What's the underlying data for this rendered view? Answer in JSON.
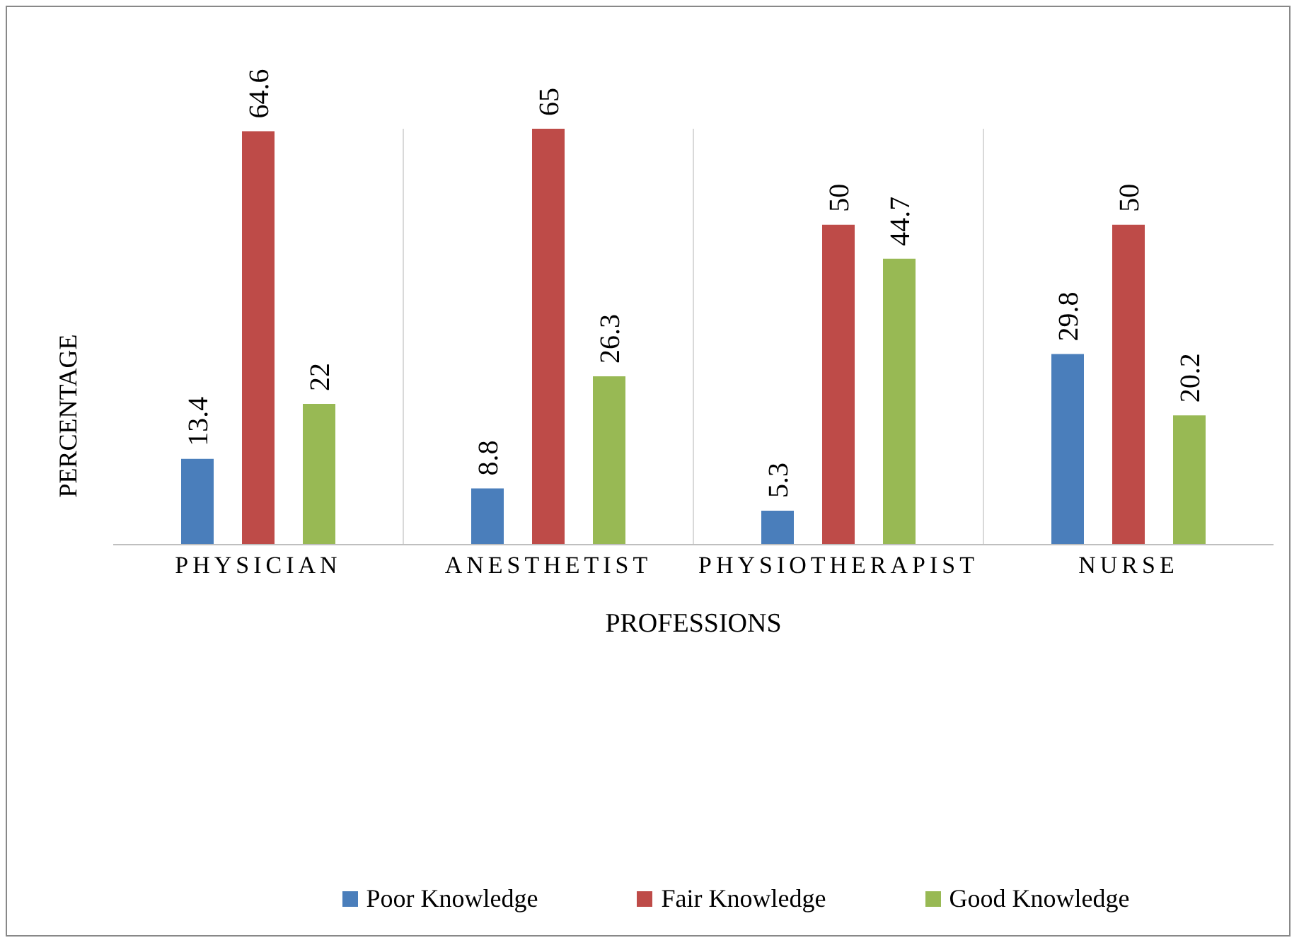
{
  "chart_data": {
    "type": "bar",
    "xlabel": "PROFESSIONS",
    "ylabel": "PERCENTAGE",
    "categories": [
      "PHYSICIAN",
      "ANESTHETIST",
      "PHYSIOTHERAPIST",
      "NURSE"
    ],
    "series": [
      {
        "name": "Poor Knowledge",
        "color": "#4a7ebb",
        "values": [
          13.4,
          8.8,
          5.3,
          29.8
        ]
      },
      {
        "name": "Fair Knowledge",
        "color": "#be4b48",
        "values": [
          64.6,
          65,
          50,
          50
        ]
      },
      {
        "name": "Good Knowledge",
        "color": "#98b954",
        "values": [
          22,
          26.3,
          44.7,
          20.2
        ]
      }
    ],
    "data_labels": true,
    "grid": "x",
    "legend": "bottom"
  }
}
